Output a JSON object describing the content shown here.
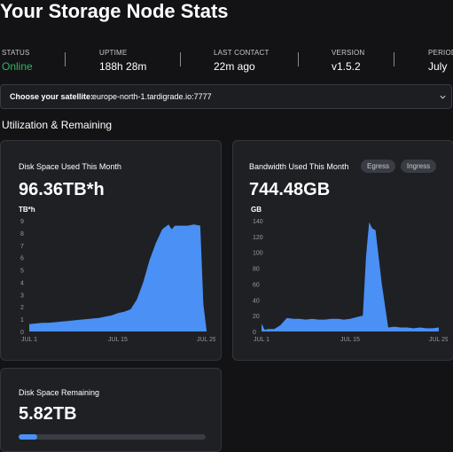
{
  "page_title": "Your Storage Node Stats",
  "stats": [
    {
      "label": "STATUS",
      "value": "Online"
    },
    {
      "label": "UPTIME",
      "value": "188h 28m"
    },
    {
      "label": "LAST CONTACT",
      "value": "22m ago"
    },
    {
      "label": "VERSION",
      "value": "v1.5.2"
    },
    {
      "label": "PERIOD",
      "value": "July"
    }
  ],
  "satellite": {
    "label": "Choose your satellite:",
    "value": "europe-north-1.tardigrade.io:7777",
    "icon": "chevron-down-icon"
  },
  "section_title": "Utilization & Remaining",
  "disk_card": {
    "title": "Disk Space Used This Month",
    "value": "96.36TB*h",
    "unit": "TB*h"
  },
  "bandwidth_card": {
    "title": "Bandwidth Used This Month",
    "value": "744.48GB",
    "unit": "GB",
    "tabs": [
      "Egress",
      "Ingress"
    ]
  },
  "remaining_card": {
    "title": "Disk Space Remaining",
    "value": "5.82TB",
    "used_fraction": 0.1
  },
  "colors": {
    "accent": "#4a90f5",
    "online": "#34b36b",
    "card_bg": "#1f2024"
  },
  "chart_data": [
    {
      "type": "area",
      "ylim": [
        0,
        9
      ],
      "yticks": [
        "0",
        "1",
        "2",
        "3",
        "4",
        "5",
        "6",
        "7",
        "8",
        "9"
      ],
      "xticks": [
        "JUL 1",
        "JUL 15",
        "JUL 29"
      ],
      "xtick_days": [
        1,
        15,
        29
      ],
      "series": [
        {
          "x": [
            1,
            2,
            3,
            4,
            5,
            6,
            7,
            8,
            9,
            10,
            11,
            12,
            13,
            14,
            15,
            16,
            17,
            17.5,
            18,
            19,
            20,
            21,
            22,
            23,
            23.5,
            24,
            25,
            26,
            27,
            28,
            28.5,
            29
          ],
          "values": [
            0.6,
            0.65,
            0.7,
            0.7,
            0.75,
            0.8,
            0.85,
            0.9,
            0.95,
            1.0,
            1.05,
            1.1,
            1.2,
            1.3,
            1.5,
            1.6,
            1.8,
            2.2,
            2.6,
            4.0,
            5.8,
            7.2,
            8.3,
            8.7,
            8.3,
            8.6,
            8.6,
            8.6,
            8.7,
            8.6,
            2.2,
            0.1
          ]
        }
      ]
    },
    {
      "type": "area",
      "ylim": [
        0,
        140
      ],
      "yticks": [
        "0",
        "20",
        "40",
        "60",
        "80",
        "100",
        "120",
        "140"
      ],
      "xticks": [
        "JUL 1",
        "JUL 15",
        "JUL 29"
      ],
      "xtick_days": [
        1,
        15,
        29
      ],
      "series": [
        {
          "x": [
            1,
            1.5,
            2,
            3,
            4,
            5,
            6,
            7,
            8,
            9,
            10,
            11,
            12,
            13,
            14,
            15,
            16,
            17,
            17.5,
            18,
            18.5,
            19,
            20,
            21,
            22,
            23,
            24,
            25,
            26,
            27,
            28,
            29
          ],
          "values": [
            10,
            2,
            3,
            3,
            8,
            17,
            16,
            16,
            15,
            16,
            15,
            15,
            16,
            16,
            15,
            16,
            18,
            20,
            95,
            138,
            130,
            128,
            60,
            5,
            6,
            5,
            5,
            4,
            5,
            4,
            4,
            5
          ]
        }
      ]
    }
  ]
}
